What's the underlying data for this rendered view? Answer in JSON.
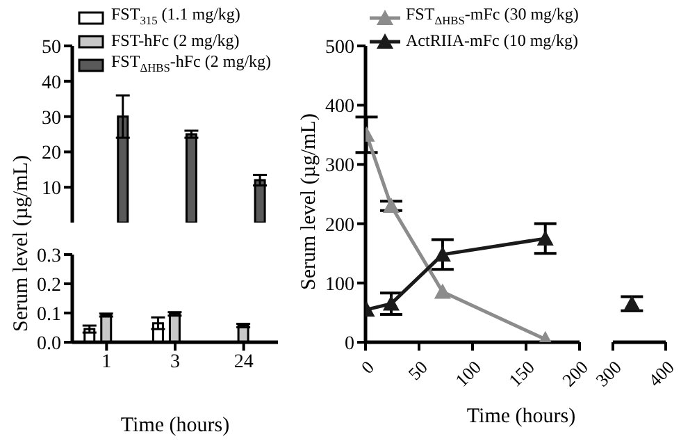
{
  "chart_data": [
    {
      "type": "bar",
      "ylabel": "Serum level (µg/mL)",
      "categories": [
        "1",
        "3",
        "24"
      ],
      "ylim": [
        0,
        50
      ],
      "yticks": [
        10,
        20,
        30,
        40,
        50
      ],
      "tick_labels": "y",
      "legend": "top left",
      "series": [
        {
          "name": "FST$_{315}$ (1.1 mg/kg)",
          "color": "#ffffff",
          "values": [
            null,
            null,
            null
          ]
        },
        {
          "name": "FST-hFc (2 mg/kg)",
          "color": "#c8c8c8",
          "values": [
            null,
            null,
            null
          ]
        },
        {
          "name": "FST$_{ΔHBS}$-hFc (2 mg/kg)",
          "color": "#5a5a5a",
          "values": [
            30,
            25,
            12
          ],
          "errors": [
            6,
            1,
            1.5
          ]
        }
      ]
    },
    {
      "type": "bar",
      "xlabel": "Time (hours)",
      "categories": [
        "1",
        "3",
        "24"
      ],
      "ylim": [
        0,
        0.3
      ],
      "yticks": [
        {
          "value": 0,
          "label": "0.0"
        },
        0.1,
        0.2,
        0.3
      ],
      "series": [
        {
          "color": "#ffffff",
          "values": [
            0.045,
            0.065,
            null
          ],
          "errors": [
            0.012,
            0.02,
            null
          ]
        },
        {
          "color": "#c8c8c8",
          "values": [
            0.093,
            0.097,
            0.057
          ],
          "errors": [
            0.005,
            0.006,
            0.006
          ]
        },
        {
          "color": "#5a5a5a",
          "values": [
            null,
            null,
            null
          ]
        }
      ]
    },
    {
      "type": "line",
      "ylabel": "Serum level (µg/mL)",
      "xlabel": "Time (hours)",
      "xlim": [
        0,
        200
      ],
      "xticks": [
        0,
        50,
        100,
        150,
        200
      ],
      "ylim": [
        0,
        500
      ],
      "yticks": [
        0,
        100,
        200,
        300,
        400,
        500
      ],
      "legend": "top left",
      "marker": "triangle",
      "series": [
        {
          "name": "FST$_{ΔHBS}$-mFc (30 mg/kg)",
          "color": "#8c8c8c",
          "x": [
            1,
            24,
            72,
            168
          ],
          "values": [
            350,
            230,
            85,
            5
          ],
          "errors": [
            30,
            8,
            null,
            null
          ]
        },
        {
          "name": "ActRIIA-mFc (10 mg/kg)",
          "color": "#1a1a1a",
          "x": [
            1,
            24,
            72,
            168
          ],
          "values": [
            55,
            65,
            148,
            175
          ],
          "errors": [
            null,
            18,
            25,
            25
          ]
        }
      ]
    },
    {
      "type": "line",
      "xlim": [
        300,
        400
      ],
      "xticks": [
        300,
        400
      ],
      "ylim": [
        0,
        500
      ],
      "tick_labels": "x",
      "marker": "triangle",
      "series": [
        {
          "color": "#1a1a1a",
          "x": [
            336
          ],
          "values": [
            65
          ],
          "errors": [
            12
          ]
        }
      ]
    }
  ]
}
